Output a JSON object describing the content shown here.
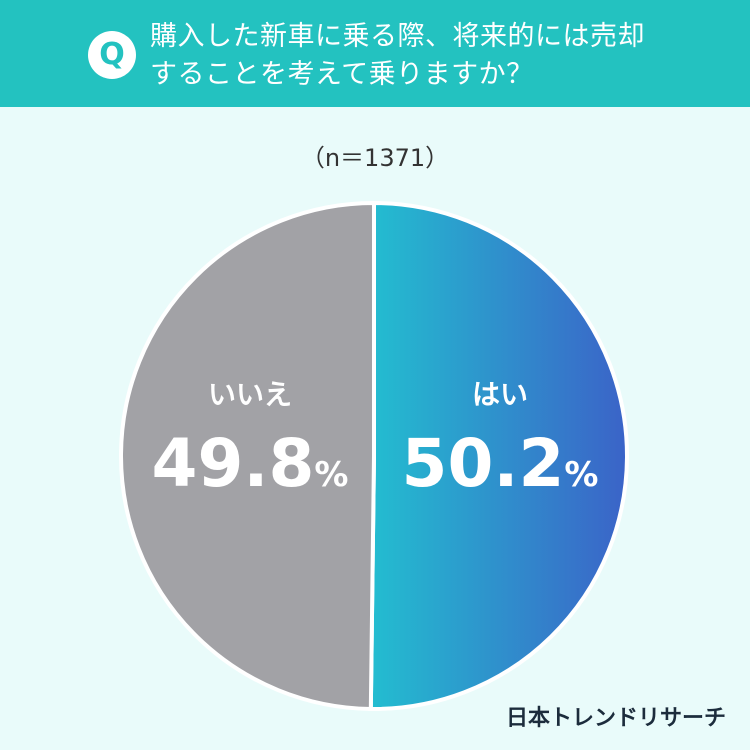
{
  "header": {
    "badge": "Q",
    "question_line1": "購入した新車に乗る際、将来的には売却",
    "question_line2": "することを考えて乗りますか？"
  },
  "sample_size": "（n＝1371）",
  "chart_data": {
    "type": "pie",
    "title": "",
    "slices": [
      {
        "label": "はい",
        "value": 50.2,
        "color": "#23bdd0",
        "gradient_end": "#3b63c8"
      },
      {
        "label": "いいえ",
        "value": 49.8,
        "color": "#a2a2a6"
      }
    ],
    "unit": "%"
  },
  "footer": {
    "brand": "日本トレンドリサーチ"
  },
  "colors": {
    "header_bg": "#23c2c0",
    "page_bg": "#e9fbfa",
    "label_text": "#ffffff"
  }
}
